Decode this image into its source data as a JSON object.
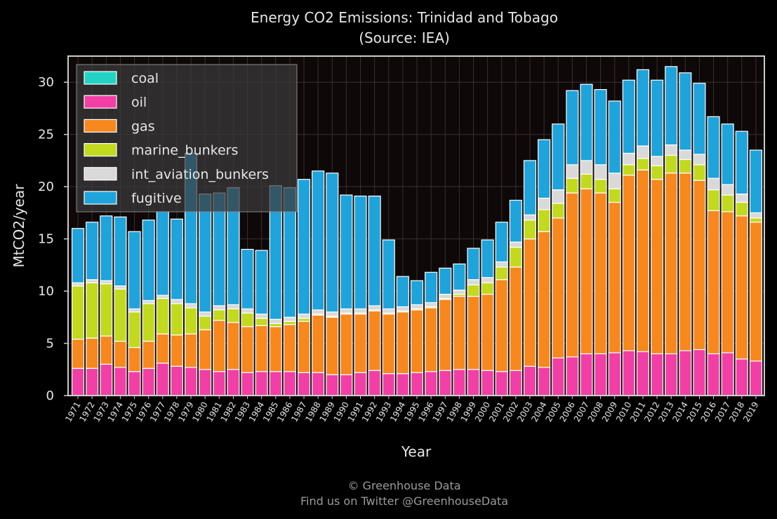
{
  "chart_data": {
    "type": "bar",
    "stacked": true,
    "title": "Energy CO2 Emissions: Trinidad and Tobago",
    "subtitle": "(Source: IEA)",
    "xlabel": "Year",
    "ylabel": "MtCO2/year",
    "ylim": [
      0,
      32.5
    ],
    "yticks": [
      0,
      5,
      10,
      15,
      20,
      25,
      30
    ],
    "grid": true,
    "legend_position": "top-left",
    "categories": [
      "1971",
      "1972",
      "1973",
      "1974",
      "1975",
      "1976",
      "1977",
      "1978",
      "1979",
      "1980",
      "1981",
      "1982",
      "1983",
      "1984",
      "1985",
      "1986",
      "1987",
      "1988",
      "1989",
      "1990",
      "1991",
      "1992",
      "1993",
      "1994",
      "1995",
      "1996",
      "1997",
      "1998",
      "1999",
      "2000",
      "2001",
      "2002",
      "2003",
      "2004",
      "2005",
      "2006",
      "2007",
      "2008",
      "2009",
      "2010",
      "2011",
      "2012",
      "2013",
      "2014",
      "2015",
      "2016",
      "2017",
      "2018",
      "2019"
    ],
    "series": [
      {
        "name": "coal",
        "color": "#22d3c5",
        "values": [
          0,
          0,
          0,
          0,
          0,
          0,
          0,
          0,
          0,
          0,
          0,
          0,
          0,
          0,
          0,
          0,
          0,
          0,
          0,
          0,
          0,
          0,
          0,
          0,
          0,
          0,
          0,
          0,
          0,
          0,
          0,
          0,
          0,
          0,
          0,
          0,
          0,
          0,
          0,
          0,
          0,
          0,
          0,
          0,
          0,
          0,
          0,
          0,
          0
        ]
      },
      {
        "name": "oil",
        "color": "#f23fa6",
        "values": [
          2.6,
          2.6,
          3.0,
          2.7,
          2.3,
          2.6,
          3.1,
          2.8,
          2.7,
          2.5,
          2.3,
          2.5,
          2.2,
          2.3,
          2.3,
          2.3,
          2.2,
          2.2,
          2.0,
          2.0,
          2.2,
          2.4,
          2.1,
          2.1,
          2.2,
          2.3,
          2.4,
          2.5,
          2.5,
          2.4,
          2.3,
          2.4,
          2.8,
          2.7,
          3.6,
          3.7,
          4.0,
          4.0,
          4.1,
          4.3,
          4.2,
          4.0,
          4.0,
          4.3,
          4.4,
          4.0,
          4.1,
          3.5,
          3.3
        ]
      },
      {
        "name": "gas",
        "color": "#f7881e",
        "values": [
          2.8,
          2.9,
          2.7,
          2.5,
          2.3,
          2.6,
          2.8,
          3.0,
          3.2,
          3.8,
          4.9,
          4.5,
          4.4,
          4.4,
          4.3,
          4.5,
          4.9,
          5.5,
          5.5,
          5.8,
          5.6,
          5.7,
          5.7,
          5.9,
          6.0,
          6.1,
          6.8,
          7.0,
          7.0,
          7.3,
          8.8,
          9.9,
          12.2,
          13.0,
          13.4,
          15.7,
          15.8,
          15.4,
          14.4,
          16.8,
          17.4,
          16.7,
          17.3,
          17.0,
          16.2,
          13.7,
          13.5,
          13.7,
          13.3
        ]
      },
      {
        "name": "marine_bunkers",
        "color": "#c2d91e",
        "values": [
          5.1,
          5.3,
          5.0,
          5.0,
          3.4,
          3.6,
          3.4,
          3.0,
          2.5,
          1.3,
          1.0,
          1.3,
          1.3,
          0.7,
          0.3,
          0.3,
          0.3,
          0.1,
          0.1,
          0.1,
          0.1,
          0.1,
          0.1,
          0.1,
          0.1,
          0.1,
          0.1,
          0.2,
          1.1,
          1.1,
          1.2,
          1.9,
          1.8,
          2.1,
          1.4,
          1.4,
          1.4,
          1.3,
          1.3,
          1.0,
          1.1,
          1.3,
          1.7,
          1.3,
          1.5,
          2.0,
          1.6,
          1.3,
          0.4
        ]
      },
      {
        "name": "int_aviation_bunkers",
        "color": "#d9d9d9",
        "values": [
          0.3,
          0.3,
          0.3,
          0.3,
          0.3,
          0.3,
          0.3,
          0.4,
          0.4,
          0.4,
          0.4,
          0.4,
          0.4,
          0.4,
          0.4,
          0.4,
          0.4,
          0.4,
          0.4,
          0.4,
          0.4,
          0.4,
          0.4,
          0.4,
          0.4,
          0.4,
          0.4,
          0.4,
          0.5,
          0.5,
          0.5,
          0.5,
          0.5,
          1.1,
          1.3,
          1.3,
          1.3,
          1.4,
          1.5,
          1.1,
          1.2,
          0.9,
          1.0,
          0.9,
          1.0,
          1.1,
          1.0,
          0.8,
          0.5
        ]
      },
      {
        "name": "fugitive",
        "color": "#1fa3db",
        "values": [
          5.2,
          5.5,
          6.2,
          6.6,
          7.4,
          7.7,
          8.0,
          7.7,
          14.4,
          11.3,
          10.8,
          11.2,
          5.7,
          6.1,
          12.8,
          12.4,
          12.9,
          13.3,
          13.3,
          10.9,
          10.8,
          10.5,
          6.6,
          2.9,
          2.3,
          2.9,
          2.5,
          2.5,
          3.0,
          3.6,
          3.8,
          4.0,
          5.2,
          5.6,
          6.3,
          7.1,
          7.3,
          7.2,
          6.9,
          7.0,
          7.3,
          7.3,
          7.5,
          7.4,
          6.8,
          5.9,
          5.8,
          6.0,
          6.0
        ]
      }
    ]
  },
  "footer": {
    "line1": "© Greenhouse Data",
    "line2": "Find us on Twitter @GreenhouseData"
  }
}
